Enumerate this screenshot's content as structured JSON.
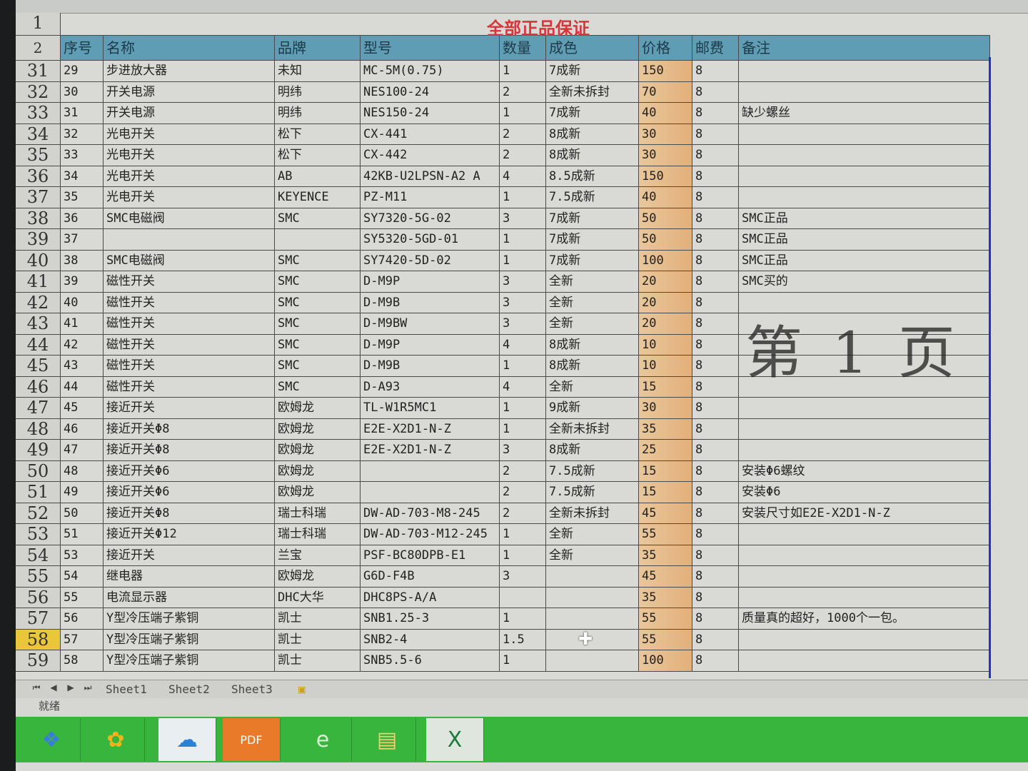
{
  "title": "全部正品保证",
  "watermark": "第 1 页",
  "headers": [
    "序号",
    "名称",
    "品牌",
    "型号",
    "数量",
    "成色",
    "价格",
    "邮费",
    "备注"
  ],
  "header_row_num": "2",
  "title_row_num": "1",
  "rows": [
    {
      "n": "31",
      "c": [
        "29",
        "步进放大器",
        "未知",
        "MC-5M(0.75)",
        "1",
        "7成新",
        "150",
        "8",
        ""
      ]
    },
    {
      "n": "32",
      "c": [
        "30",
        "开关电源",
        "明纬",
        "NES100-24",
        "2",
        "全新未拆封",
        "70",
        "8",
        ""
      ]
    },
    {
      "n": "33",
      "c": [
        "31",
        "开关电源",
        "明纬",
        "NES150-24",
        "1",
        "7成新",
        "40",
        "8",
        "缺少螺丝"
      ]
    },
    {
      "n": "34",
      "c": [
        "32",
        "光电开关",
        "松下",
        "CX-441",
        "2",
        "8成新",
        "30",
        "8",
        ""
      ]
    },
    {
      "n": "35",
      "c": [
        "33",
        "光电开关",
        "松下",
        "CX-442",
        "2",
        "8成新",
        "30",
        "8",
        ""
      ]
    },
    {
      "n": "36",
      "c": [
        "34",
        "光电开关",
        "AB",
        "42KB-U2LPSN-A2 A",
        "4",
        "8.5成新",
        "150",
        "8",
        ""
      ]
    },
    {
      "n": "37",
      "c": [
        "35",
        "光电开关",
        "KEYENCE",
        "PZ-M11",
        "1",
        "7.5成新",
        "40",
        "8",
        ""
      ]
    },
    {
      "n": "38",
      "c": [
        "36",
        "SMC电磁阀",
        "SMC",
        "SY7320-5G-02",
        "3",
        "7成新",
        "50",
        "8",
        "SMC正品"
      ]
    },
    {
      "n": "39",
      "c": [
        "37",
        "",
        "",
        "SY5320-5GD-01",
        "1",
        "7成新",
        "50",
        "8",
        "SMC正品"
      ]
    },
    {
      "n": "40",
      "c": [
        "38",
        "SMC电磁阀",
        "SMC",
        "SY7420-5D-02",
        "1",
        "7成新",
        "100",
        "8",
        "SMC正品"
      ]
    },
    {
      "n": "41",
      "c": [
        "39",
        "磁性开关",
        "SMC",
        "D-M9P",
        "3",
        "全新",
        "20",
        "8",
        "SMC买的"
      ]
    },
    {
      "n": "42",
      "c": [
        "40",
        "磁性开关",
        "SMC",
        "D-M9B",
        "3",
        "全新",
        "20",
        "8",
        ""
      ]
    },
    {
      "n": "43",
      "c": [
        "41",
        "磁性开关",
        "SMC",
        "D-M9BW",
        "3",
        "全新",
        "20",
        "8",
        ""
      ]
    },
    {
      "n": "44",
      "c": [
        "42",
        "磁性开关",
        "SMC",
        "D-M9P",
        "4",
        "8成新",
        "10",
        "8",
        ""
      ]
    },
    {
      "n": "45",
      "c": [
        "43",
        "磁性开关",
        "SMC",
        "D-M9B",
        "1",
        "8成新",
        "10",
        "8",
        ""
      ]
    },
    {
      "n": "46",
      "c": [
        "44",
        "磁性开关",
        "SMC",
        "D-A93",
        "4",
        "全新",
        "15",
        "8",
        ""
      ]
    },
    {
      "n": "47",
      "c": [
        "45",
        "接近开关",
        "欧姆龙",
        "TL-W1R5MC1",
        "1",
        "9成新",
        "30",
        "8",
        ""
      ]
    },
    {
      "n": "48",
      "c": [
        "46",
        "接近开关Φ8",
        "欧姆龙",
        "E2E-X2D1-N-Z",
        "1",
        "全新未拆封",
        "35",
        "8",
        ""
      ]
    },
    {
      "n": "49",
      "c": [
        "47",
        "接近开关Φ8",
        "欧姆龙",
        "E2E-X2D1-N-Z",
        "3",
        "8成新",
        "25",
        "8",
        ""
      ]
    },
    {
      "n": "50",
      "c": [
        "48",
        "接近开关Φ6",
        "欧姆龙",
        "",
        "2",
        "7.5成新",
        "15",
        "8",
        "安装Φ6螺纹"
      ]
    },
    {
      "n": "51",
      "c": [
        "49",
        "接近开关Φ6",
        "欧姆龙",
        "",
        "2",
        "7.5成新",
        "15",
        "8",
        "安装Φ6"
      ]
    },
    {
      "n": "52",
      "c": [
        "50",
        "接近开关Φ8",
        "瑞士科瑞",
        "DW-AD-703-M8-245",
        "2",
        "全新未拆封",
        "45",
        "8",
        "安装尺寸如E2E-X2D1-N-Z"
      ]
    },
    {
      "n": "53",
      "c": [
        "51",
        "接近开关Φ12",
        "瑞士科瑞",
        "DW-AD-703-M12-245",
        "1",
        "全新",
        "55",
        "8",
        ""
      ]
    },
    {
      "n": "54",
      "c": [
        "53",
        "接近开关",
        "兰宝",
        "PSF-BC80DPB-E1",
        "1",
        "全新",
        "35",
        "8",
        ""
      ]
    },
    {
      "n": "55",
      "c": [
        "54",
        "继电器",
        "欧姆龙",
        "G6D-F4B",
        "3",
        "",
        "45",
        "8",
        ""
      ]
    },
    {
      "n": "56",
      "c": [
        "55",
        "电流显示器",
        "DHC大华",
        "DHC8PS-A/A",
        "",
        "",
        "35",
        "8",
        ""
      ]
    },
    {
      "n": "57",
      "c": [
        "56",
        "Y型冷压端子紫铜",
        "凯士",
        "SNB1.25-3",
        "1",
        "",
        "55",
        "8",
        "质量真的超好，1000个一包。"
      ]
    },
    {
      "n": "58",
      "c": [
        "57",
        "Y型冷压端子紫铜",
        "凯士",
        "SNB2-4",
        "1.5",
        "",
        "55",
        "8",
        ""
      ],
      "selected": true
    },
    {
      "n": "59",
      "c": [
        "58",
        "Y型冷压端子紫铜",
        "凯士",
        "SNB5.5-6",
        "1",
        "",
        "100",
        "8",
        ""
      ]
    }
  ],
  "sheet_tabs": [
    "Sheet1",
    "Sheet2",
    "Sheet3"
  ],
  "status": "就绪",
  "taskbar_icons": [
    "windows-start-icon",
    "app-icon",
    "cloud-icon",
    "pdf-icon",
    "browser-icon",
    "folder-icon",
    "excel-icon"
  ],
  "colors": {
    "header_bg": "#5f9db4",
    "title": "#d9343a",
    "price_col": "#e3b07a",
    "selected_row": "#e9c63a",
    "taskbar": "#38b53c"
  }
}
